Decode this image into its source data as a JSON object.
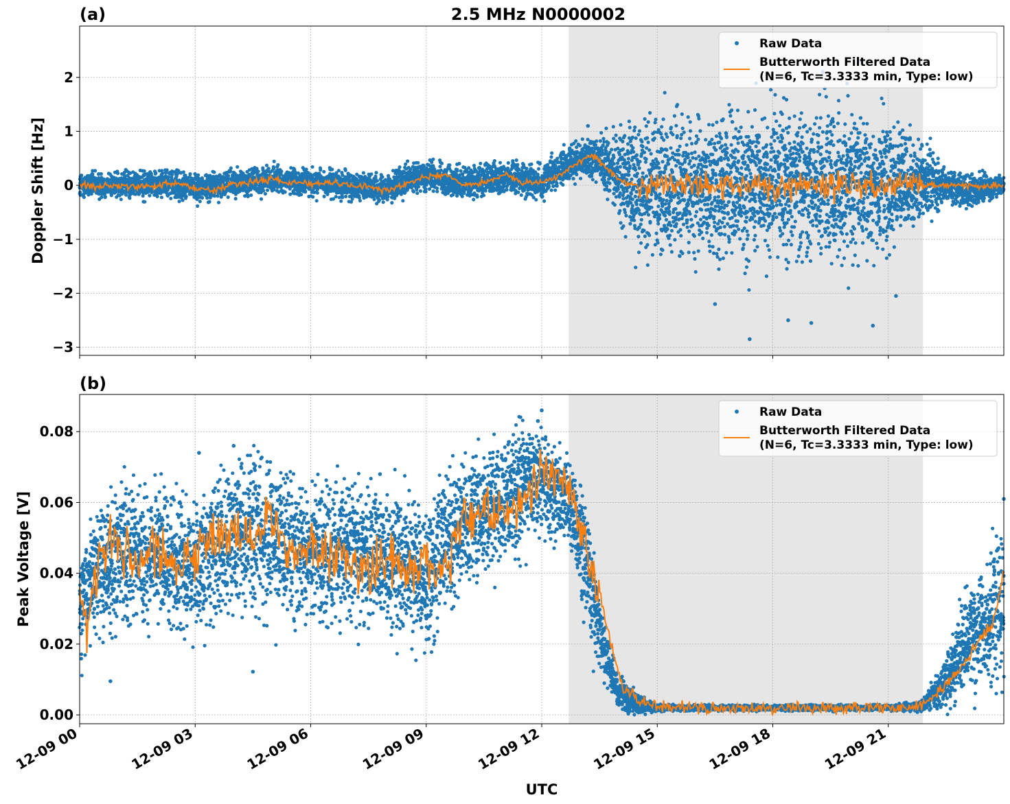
{
  "figure": {
    "title": "2.5 MHz N0000002"
  },
  "colors": {
    "raw": "#1f77b4",
    "filtered": "#ff7f0e",
    "shade": "#e6e6e6",
    "grid": "#b0b0b0"
  },
  "chart_data": [
    {
      "type": "scatter",
      "panel_label": "(a)",
      "title": "2.5 MHz N0000002",
      "xlabel": "",
      "ylabel": "Doppler Shift [Hz]",
      "xlim": [
        0,
        24
      ],
      "ylim": [
        -3.15,
        2.95
      ],
      "yticks": [
        2,
        1,
        0,
        -1,
        -2,
        -3
      ],
      "ytick_labels": [
        "2",
        "1",
        "0",
        "−1",
        "−2",
        "−3"
      ],
      "grid": true,
      "shaded_span_hours": [
        12.7,
        21.9
      ],
      "legend": {
        "position": "top-right",
        "entries": [
          "Raw Data",
          "Butterworth Filtered Data",
          "(N=6, Tc=3.3333 min, Type: low)"
        ]
      },
      "series": [
        {
          "name": "Raw Data",
          "kind": "scatter-band",
          "x": [
            0,
            1,
            2,
            3,
            4,
            5,
            6,
            7,
            8,
            9,
            10,
            11,
            12,
            12.7,
            13,
            13.5,
            14,
            14.5,
            15,
            16,
            17,
            18,
            19,
            20,
            21,
            21.9,
            22.5,
            23,
            24
          ],
          "center": [
            0,
            0,
            0.05,
            -0.05,
            0.05,
            0.1,
            0.05,
            0,
            -0.05,
            0.2,
            0.05,
            0.15,
            0.05,
            0.4,
            0.5,
            0.5,
            0.15,
            0,
            0,
            0,
            0,
            0,
            0,
            0,
            0.05,
            0.05,
            0,
            -0.1,
            0
          ],
          "spread": [
            0.25,
            0.25,
            0.25,
            0.25,
            0.25,
            0.25,
            0.25,
            0.25,
            0.25,
            0.3,
            0.3,
            0.3,
            0.3,
            0.35,
            0.35,
            0.4,
            0.8,
            1.3,
            1.4,
            1.4,
            1.4,
            1.4,
            1.4,
            1.4,
            1.3,
            0.8,
            0.3,
            0.35,
            0.15
          ],
          "extremes": [
            [
              17.4,
              -2.85
            ],
            [
              18.4,
              -2.5
            ],
            [
              19,
              -2.55
            ],
            [
              20.6,
              -2.6
            ],
            [
              21.2,
              -2.05
            ],
            [
              18.3,
              2.6
            ],
            [
              20.3,
              2.3
            ],
            [
              16.5,
              -2.2
            ],
            [
              19.3,
              2.1
            ],
            [
              13.2,
              1.1
            ]
          ]
        },
        {
          "name": "Butterworth Filtered Data",
          "kind": "line",
          "x": [
            0,
            0.5,
            1,
            1.5,
            2,
            2.5,
            3,
            3.5,
            4,
            4.5,
            5,
            5.5,
            6,
            6.5,
            7,
            7.5,
            8,
            8.5,
            9,
            9.5,
            10,
            10.5,
            11,
            11.5,
            12,
            12.5,
            13,
            13.3,
            13.6,
            14,
            14.5,
            15,
            24
          ],
          "y": [
            0,
            -0.02,
            0,
            -0.05,
            0.02,
            0.05,
            -0.05,
            -0.1,
            0.02,
            0.08,
            0.1,
            0.05,
            0.02,
            0.05,
            0,
            -0.02,
            -0.1,
            0.05,
            0.15,
            0.2,
            0,
            0.05,
            0.2,
            0.05,
            0.05,
            0.2,
            0.45,
            0.55,
            0.4,
            0.1,
            0,
            0,
            0
          ],
          "oscillation_hours": [
            14.5,
            21.9
          ],
          "oscillation_amplitude": 0.25
        }
      ]
    },
    {
      "type": "scatter",
      "panel_label": "(b)",
      "title": "",
      "xlabel": "UTC",
      "ylabel": "Peak Voltage [V]",
      "xlim": [
        0,
        24
      ],
      "ylim": [
        -0.0025,
        0.0905
      ],
      "yticks": [
        0.08,
        0.06,
        0.04,
        0.02,
        0.0
      ],
      "ytick_labels": [
        "0.08",
        "0.06",
        "0.04",
        "0.02",
        "0.00"
      ],
      "xticks_hours": [
        0,
        3,
        6,
        9,
        12,
        15,
        18,
        21
      ],
      "xtick_labels": [
        "12-09 00",
        "12-09 03",
        "12-09 06",
        "12-09 09",
        "12-09 12",
        "12-09 15",
        "12-09 18",
        "12-09 21"
      ],
      "grid": true,
      "shaded_span_hours": [
        12.7,
        21.9
      ],
      "legend": {
        "position": "top-right",
        "entries": [
          "Raw Data",
          "Butterworth Filtered Data",
          "(N=6, Tc=3.3333 min, Type: low)"
        ]
      },
      "series": [
        {
          "name": "Raw Data",
          "kind": "scatter-band",
          "x": [
            0,
            0.5,
            1,
            2,
            3,
            4,
            5,
            6,
            7,
            8,
            9,
            10,
            11,
            11.5,
            12,
            12.5,
            12.8,
            13.2,
            13.6,
            14,
            14.5,
            15,
            16,
            17,
            18,
            19,
            20,
            21,
            21.9,
            22.5,
            23,
            23.5,
            24
          ],
          "center": [
            0.03,
            0.04,
            0.045,
            0.045,
            0.042,
            0.05,
            0.05,
            0.045,
            0.045,
            0.045,
            0.04,
            0.055,
            0.06,
            0.065,
            0.066,
            0.062,
            0.058,
            0.04,
            0.02,
            0.006,
            0.003,
            0.002,
            0.002,
            0.002,
            0.002,
            0.002,
            0.002,
            0.002,
            0.0025,
            0.01,
            0.02,
            0.025,
            0.03
          ],
          "spread": [
            0.015,
            0.018,
            0.02,
            0.02,
            0.02,
            0.022,
            0.022,
            0.02,
            0.022,
            0.02,
            0.02,
            0.018,
            0.017,
            0.017,
            0.015,
            0.013,
            0.012,
            0.02,
            0.01,
            0.005,
            0.003,
            0.001,
            0.0008,
            0.0008,
            0.0008,
            0.0008,
            0.0008,
            0.0008,
            0.0015,
            0.008,
            0.014,
            0.016,
            0.025
          ],
          "extremes": [
            [
              0.8,
              0.0095
            ],
            [
              4.5,
              0.0122
            ],
            [
              12.0,
              0.086
            ],
            [
              11.9,
              0.083
            ],
            [
              4.0,
              0.076
            ],
            [
              3.1,
              0.074
            ],
            [
              7.8,
              0.068
            ],
            [
              24,
              0.061
            ]
          ]
        },
        {
          "name": "Butterworth Filtered Data",
          "kind": "line",
          "x": [
            0,
            0.2,
            0.5,
            1,
            1.5,
            2,
            2.5,
            3,
            3.5,
            4,
            4.5,
            5,
            5.5,
            6,
            6.5,
            7,
            7.5,
            8,
            8.5,
            9,
            9.5,
            10,
            10.5,
            11,
            11.5,
            12,
            12.3,
            12.6,
            12.9,
            13.2,
            13.5,
            13.8,
            14.1,
            14.5,
            15,
            16,
            17,
            18,
            19,
            20,
            21,
            21.9,
            22.3,
            22.8,
            23.3,
            23.7,
            24
          ],
          "y": [
            0.035,
            0.028,
            0.045,
            0.05,
            0.042,
            0.048,
            0.04,
            0.045,
            0.05,
            0.052,
            0.05,
            0.055,
            0.045,
            0.048,
            0.045,
            0.042,
            0.04,
            0.045,
            0.04,
            0.042,
            0.04,
            0.055,
            0.06,
            0.055,
            0.06,
            0.068,
            0.066,
            0.065,
            0.06,
            0.045,
            0.035,
            0.02,
            0.008,
            0.004,
            0.0025,
            0.002,
            0.002,
            0.002,
            0.002,
            0.002,
            0.002,
            0.003,
            0.006,
            0.012,
            0.02,
            0.025,
            0.04
          ],
          "oscillation_hours": [
            0,
            13.5
          ],
          "oscillation_amplitude": 0.007
        }
      ]
    }
  ]
}
